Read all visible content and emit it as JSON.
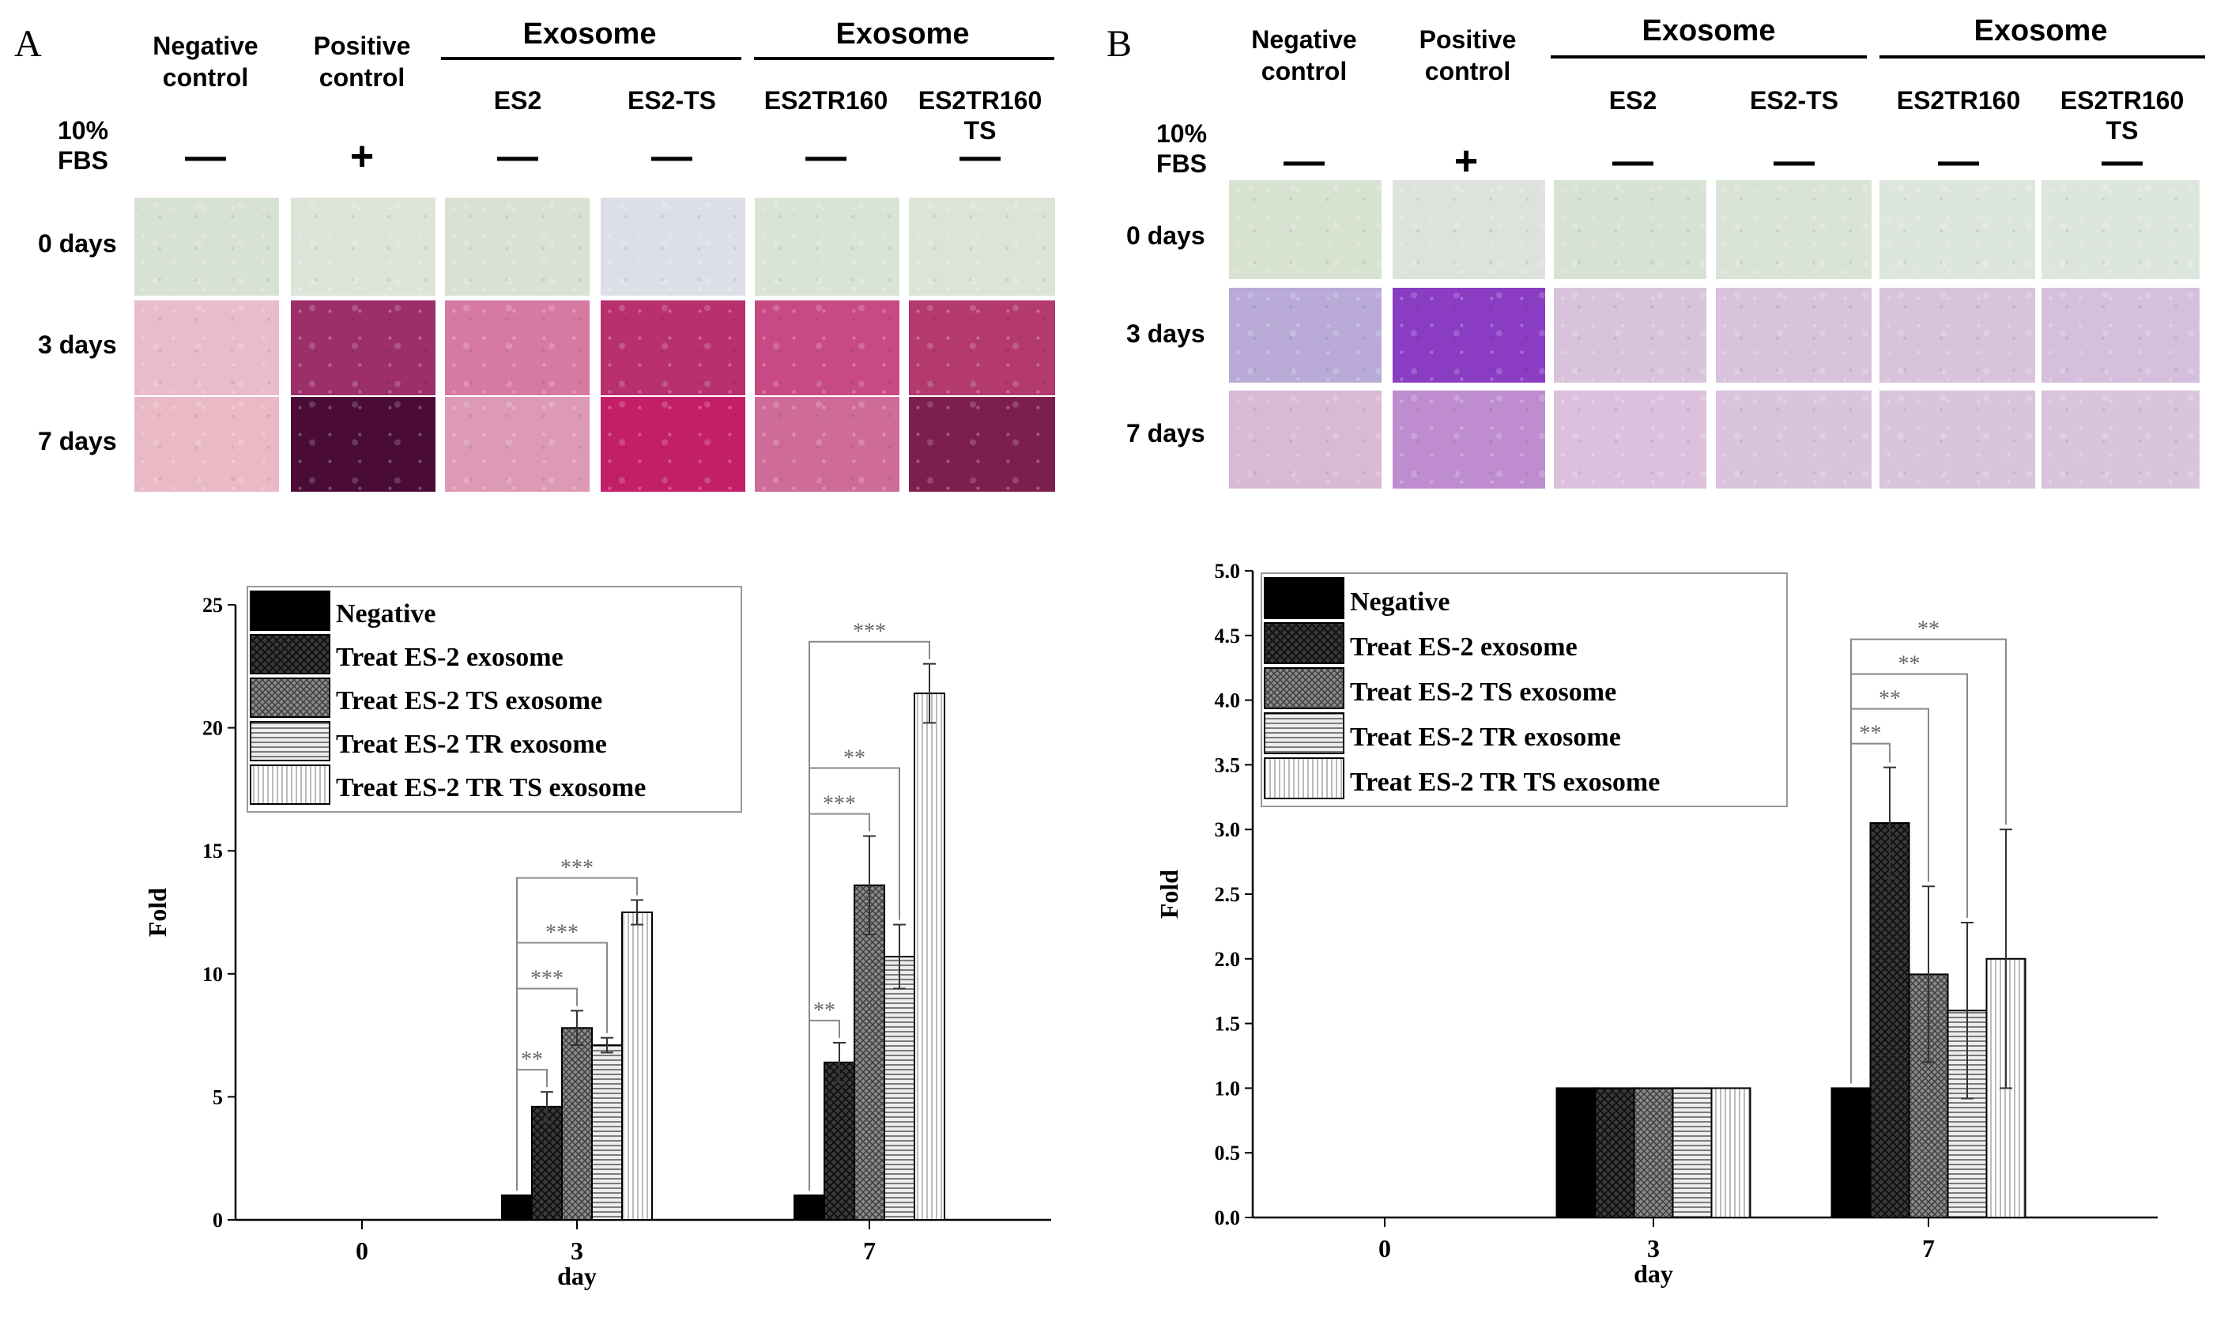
{
  "panels": [
    {
      "letter": "A",
      "header": {
        "negative": "Negative\ncontrol",
        "positive": "Positive\ncontrol",
        "group1": "Exosome",
        "group2": "Exosome",
        "es2": "ES2",
        "es2ts": "ES2-TS",
        "es2tr160": "ES2TR160",
        "es2tr160ts": "ES2TR160\nTS",
        "fbs": "10%\nFBS",
        "signs": [
          "—",
          "+",
          "—",
          "—",
          "—",
          "—"
        ]
      },
      "rows": [
        "0 days",
        "3 days",
        "7 days"
      ]
    },
    {
      "letter": "B",
      "header": {
        "negative": "Negative\ncontrol",
        "positive": "Positive\ncontrol",
        "group1": "Exosome",
        "group2": "Exosome",
        "es2": "ES2",
        "es2ts": "ES2-TS",
        "es2tr160": "ES2TR160",
        "es2tr160ts": "ES2TR160\nTS",
        "fbs": "10%\nFBS",
        "signs": [
          "—",
          "+",
          "—",
          "—",
          "—",
          "—"
        ]
      },
      "rows": [
        "0 days",
        "3 days",
        "7 days"
      ]
    }
  ],
  "tile_colors": {
    "a": [
      [
        "#d8e2d3",
        "#dde4d8",
        "#d9e2d2",
        "#dcdfe6",
        "#d9e4d6",
        "#dce4d7"
      ],
      [
        "#e8bcc8",
        "#9c2f6a",
        "#d77aa2",
        "#b8306e",
        "#c84a84",
        "#b3396f"
      ],
      [
        "#e9b9c5",
        "#4a0c36",
        "#dc9ab4",
        "#c31f68",
        "#cf6b98",
        "#7c1f4e"
      ]
    ],
    "b": [
      [
        "#d7e2d1",
        "#dde2dc",
        "#d7e2d3",
        "#dae4d6",
        "#dde6dc",
        "#dde6dc"
      ],
      [
        "#b9aad8",
        "#8a3cc3",
        "#d9c2dc",
        "#d9c2db",
        "#d9c2db",
        "#d6bfdc"
      ],
      [
        "#d8b9d6",
        "#c08cd0",
        "#dbc1dd",
        "#d9c3dd",
        "#dac4dd",
        "#dac3dd"
      ]
    ]
  },
  "chart_data": [
    {
      "type": "bar",
      "ylabel": "Fold",
      "xlabel": "day",
      "categories": [
        "0",
        "3",
        "7"
      ],
      "ylim": [
        0,
        25
      ],
      "yticks": [
        "0",
        "5",
        "10",
        "15",
        "20",
        "25"
      ],
      "series": [
        {
          "name": "Negative",
          "values": [
            null,
            1.0,
            1.0
          ],
          "errors": [
            null,
            0,
            0
          ]
        },
        {
          "name": "Treat ES-2 exosome",
          "values": [
            null,
            4.6,
            6.4
          ],
          "errors": [
            null,
            0.6,
            0.8
          ]
        },
        {
          "name": "Treat ES-2 TS exosome",
          "values": [
            null,
            7.8,
            13.6
          ],
          "errors": [
            null,
            0.7,
            2.0
          ]
        },
        {
          "name": "Treat ES-2 TR exosome",
          "values": [
            null,
            7.1,
            10.7
          ],
          "errors": [
            null,
            0.3,
            1.3
          ]
        },
        {
          "name": "Treat ES-2 TR TS exosome",
          "values": [
            null,
            12.5,
            21.4
          ],
          "errors": [
            null,
            0.5,
            1.2
          ]
        }
      ],
      "significance": [
        {
          "category": "3",
          "to_series": 1,
          "label": "**"
        },
        {
          "category": "3",
          "to_series": 2,
          "label": "***"
        },
        {
          "category": "3",
          "to_series": 3,
          "label": "***"
        },
        {
          "category": "3",
          "to_series": 4,
          "label": "***"
        },
        {
          "category": "7",
          "to_series": 1,
          "label": "**"
        },
        {
          "category": "7",
          "to_series": 2,
          "label": "***"
        },
        {
          "category": "7",
          "to_series": 3,
          "label": "**"
        },
        {
          "category": "7",
          "to_series": 4,
          "label": "***"
        }
      ],
      "legend_position": "top-left"
    },
    {
      "type": "bar",
      "ylabel": "Fold",
      "xlabel": "day",
      "categories": [
        "0",
        "3",
        "7"
      ],
      "ylim": [
        0,
        5
      ],
      "yticks": [
        "0.0",
        "0.5",
        "1.0",
        "1.5",
        "2.0",
        "2.5",
        "3.0",
        "3.5",
        "4.0",
        "4.5",
        "5.0"
      ],
      "series": [
        {
          "name": "Negative",
          "values": [
            null,
            1.0,
            1.0
          ],
          "errors": [
            null,
            0,
            0
          ]
        },
        {
          "name": "Treat ES-2 exosome",
          "values": [
            null,
            1.0,
            3.05
          ],
          "errors": [
            null,
            0,
            0.43
          ]
        },
        {
          "name": "Treat ES-2 TS exosome",
          "values": [
            null,
            1.0,
            1.88
          ],
          "errors": [
            null,
            0,
            0.68
          ]
        },
        {
          "name": "Treat ES-2 TR exosome",
          "values": [
            null,
            1.0,
            1.6
          ],
          "errors": [
            null,
            0,
            0.68
          ]
        },
        {
          "name": "Treat ES-2 TR TS exosome",
          "values": [
            null,
            1.0,
            2.0
          ],
          "errors": [
            null,
            0,
            1.0
          ]
        }
      ],
      "significance": [
        {
          "category": "7",
          "to_series": 1,
          "label": "**"
        },
        {
          "category": "7",
          "to_series": 2,
          "label": "**"
        },
        {
          "category": "7",
          "to_series": 3,
          "label": "**"
        },
        {
          "category": "7",
          "to_series": 4,
          "label": "**"
        }
      ],
      "legend_position": "top-left"
    }
  ]
}
